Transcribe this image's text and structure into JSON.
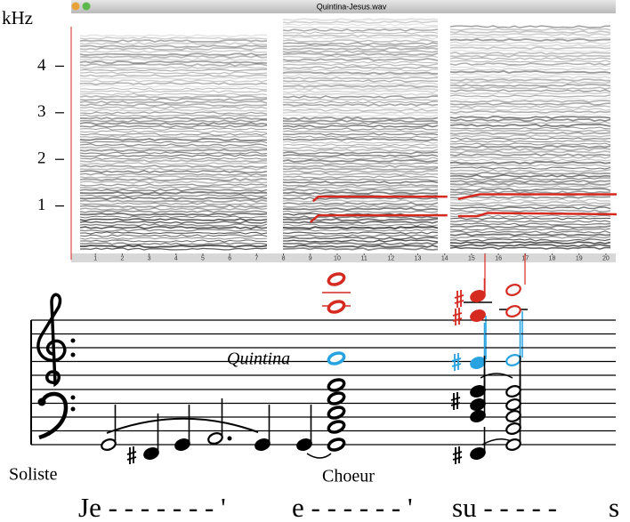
{
  "spectrogram": {
    "window_title": "Quintina-Jesus.wav",
    "y_unit": "kHz",
    "ylim": [
      0,
      5
    ],
    "yticks": [
      1,
      2,
      3,
      4
    ],
    "xlim": [
      0,
      20.4
    ],
    "xticks": [
      1,
      2,
      3,
      4,
      5,
      6,
      7,
      8,
      9,
      10,
      11,
      12,
      13,
      14,
      15,
      16,
      17,
      18,
      19,
      20
    ],
    "track_color": "#d42a20",
    "tracks": [
      {
        "x": [
          9.1,
          9.3,
          14.1
        ],
        "y": [
          1.1,
          1.2,
          1.2
        ]
      },
      {
        "x": [
          9.0,
          9.3,
          14.1
        ],
        "y": [
          0.65,
          0.8,
          0.8
        ]
      },
      {
        "x": [
          14.5,
          15.3,
          20.4
        ],
        "y": [
          1.15,
          1.25,
          1.25
        ]
      },
      {
        "x": [
          14.5,
          15.2,
          15.6,
          20.4
        ],
        "y": [
          0.78,
          0.78,
          0.85,
          0.82
        ]
      }
    ]
  },
  "score": {
    "annotation": "Quintina",
    "soloist_label": "Soliste",
    "choir_label": "Choeur",
    "lyrics": [
      "Je - - - - - - - '",
      "e - - - - - - '",
      "su - - - - -",
      "s"
    ]
  }
}
